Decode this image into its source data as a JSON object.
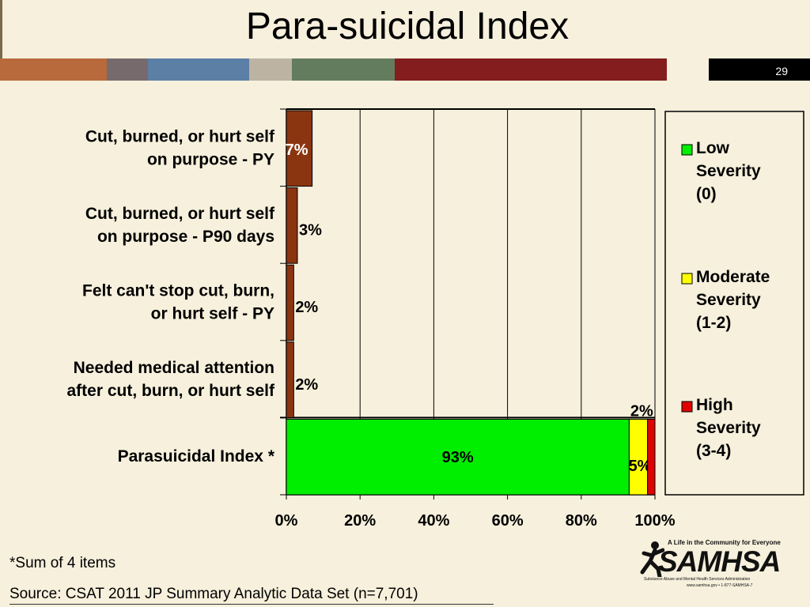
{
  "slide": {
    "title": "Para-suicidal Index",
    "page_number": "29",
    "footnote": "*Sum of 4 items",
    "source": "Source: CSAT 2011 JP Summary Analytic Data Set (n=7,701)",
    "band_colors": [
      "#b86a3c",
      "#776a6d",
      "#5b7fa5",
      "#bdb3a3",
      "#647c5e",
      "#841d1d",
      "#f6f0dc",
      "#000000"
    ]
  },
  "logo": {
    "tagline": "A Life in the Community for Everyone",
    "wordmark": "SAMHSA",
    "subtitle": "Substance Abuse and Mental Health Services Administration",
    "url": "www.samhsa.gov • 1-877-SAMHSA-7"
  },
  "chart_data": {
    "type": "bar",
    "orientation": "horizontal",
    "stacked": true,
    "categories": [
      "Cut, burned, or hurt self\non purpose - PY",
      "Cut, burned, or hurt self\non purpose - P90 days",
      "Felt can't stop cut, burn,\nor hurt self - PY",
      "Needed medical attention\nafter cut, burn, or hurt self",
      "Parasuicidal Index *"
    ],
    "series": [
      {
        "name": "Low Severity (0)",
        "color": "#00ee00",
        "values": [
          0,
          0,
          0,
          0,
          93
        ],
        "labels": [
          "",
          "",
          "",
          "",
          "93%"
        ]
      },
      {
        "name": "Moderate Severity (1-2)",
        "color": "#ffff00",
        "values": [
          0,
          0,
          0,
          0,
          5
        ],
        "labels": [
          "",
          "",
          "",
          "",
          "5%"
        ]
      },
      {
        "name": "High Severity (3-4)",
        "color": "#e00000",
        "values": [
          0,
          0,
          0,
          0,
          2
        ],
        "labels": [
          "",
          "",
          "",
          "",
          "2%"
        ]
      }
    ],
    "item_bars": {
      "color": "#8b3510",
      "values": [
        7,
        3,
        2,
        2
      ],
      "labels": [
        "7%",
        "3%",
        "2%",
        "2%"
      ]
    },
    "xlim": [
      0,
      100
    ],
    "xticks": [
      "0%",
      "20%",
      "40%",
      "60%",
      "80%",
      "100%"
    ],
    "grid": true,
    "legend_position": "right"
  }
}
